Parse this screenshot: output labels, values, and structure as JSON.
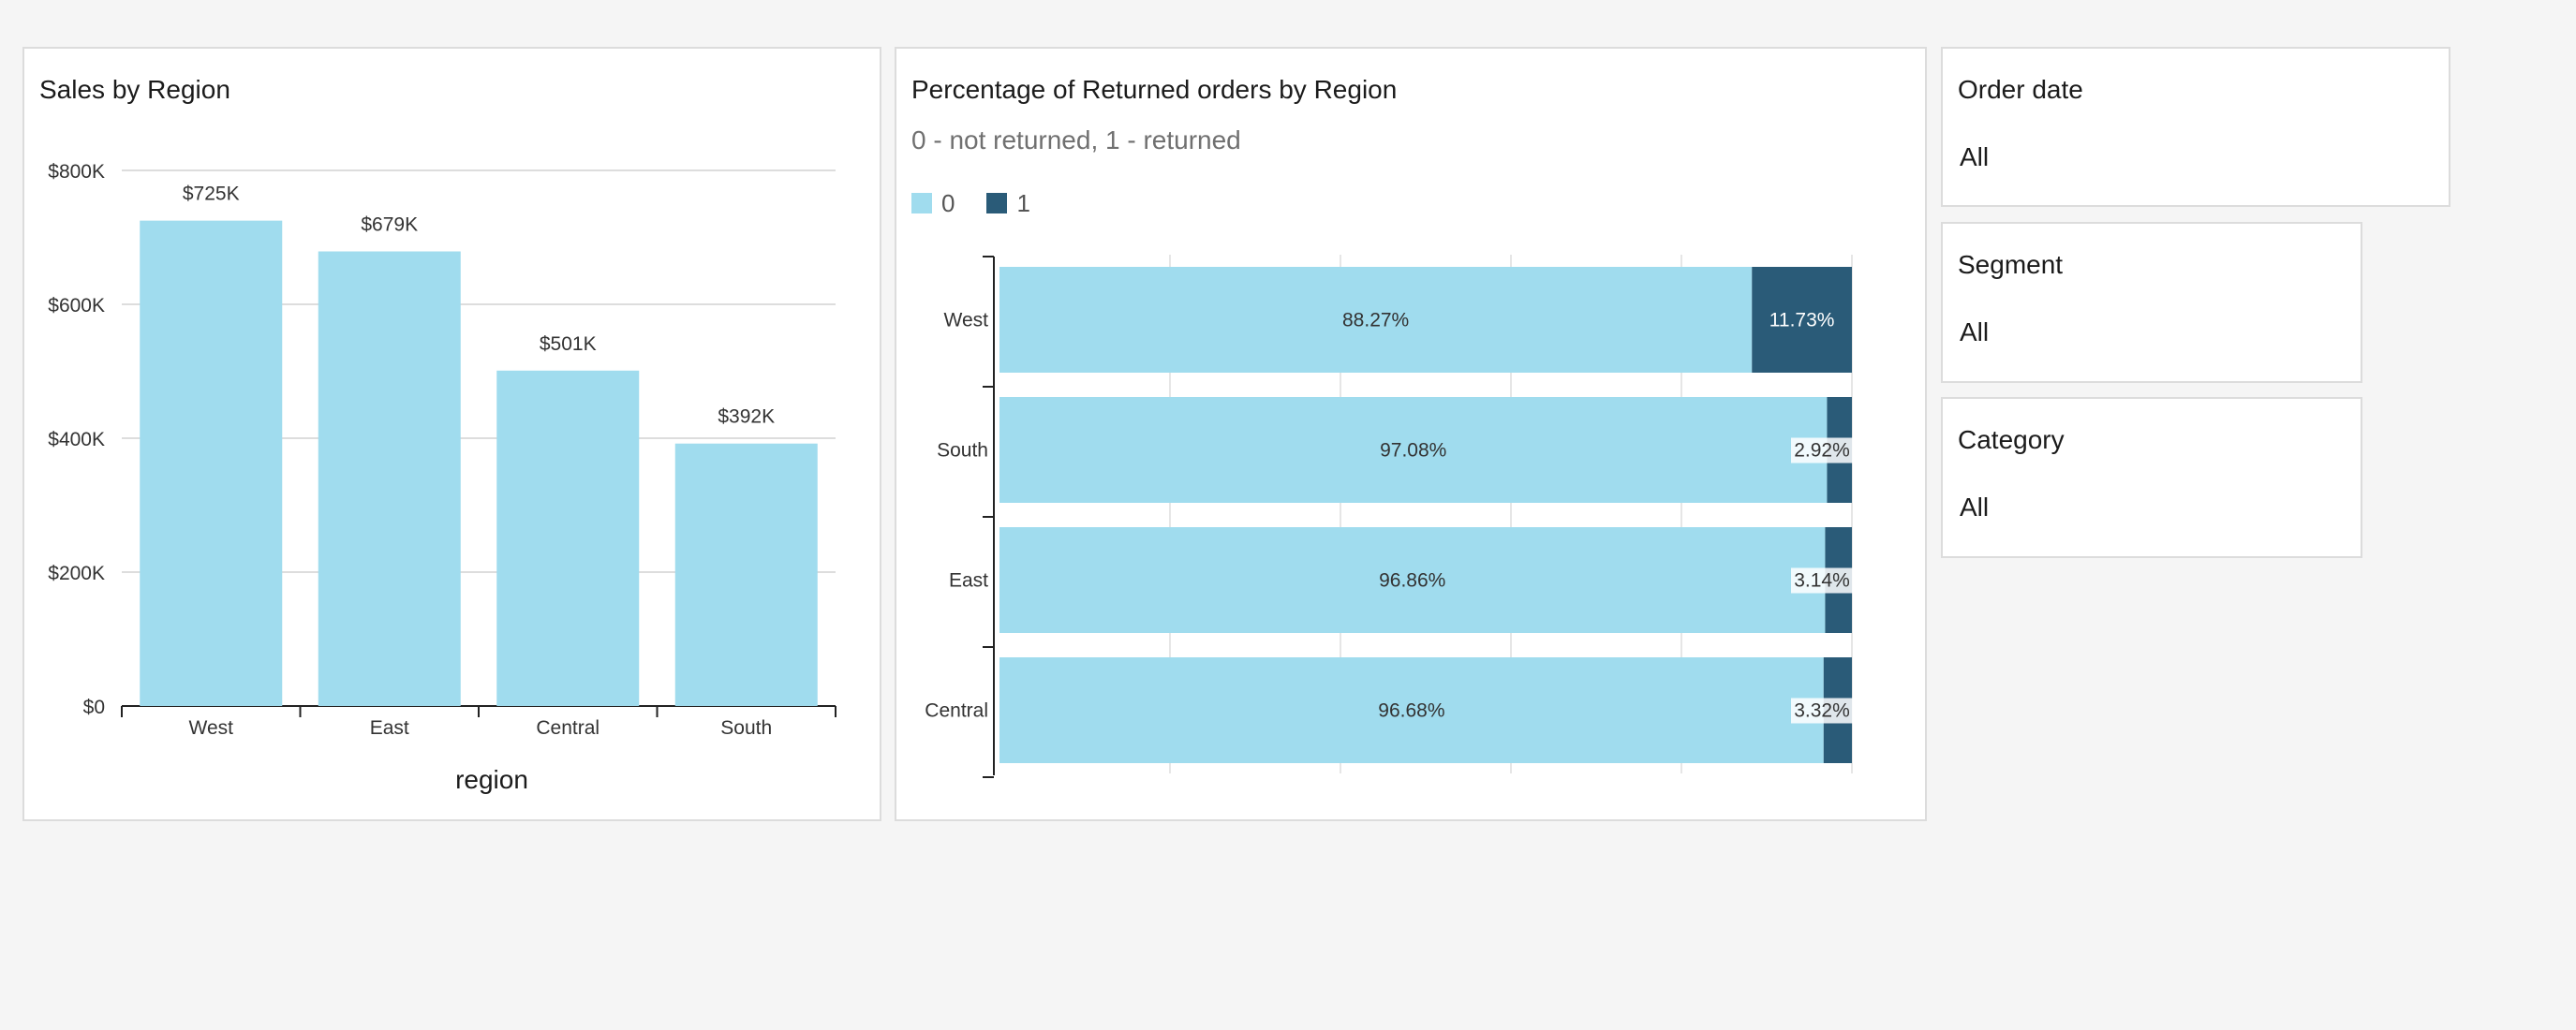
{
  "colors": {
    "bar": "#a0dcee",
    "returned": "#2a5b78",
    "grid": "#dddddd",
    "axis": "#222222"
  },
  "sales_chart": {
    "title": "Sales by Region"
  },
  "returns_chart": {
    "title": "Percentage of Returned orders by Region",
    "subtitle": "0 - not returned, 1 - returned",
    "legend": [
      {
        "label": "0",
        "color": "#a0dcee"
      },
      {
        "label": "1",
        "color": "#2a5b78"
      }
    ]
  },
  "filters": {
    "order_date": {
      "label": "Order date",
      "value": "All"
    },
    "segment": {
      "label": "Segment",
      "value": "All"
    },
    "category": {
      "label": "Category",
      "value": "All"
    }
  },
  "chart_data": [
    {
      "type": "bar",
      "title": "Sales by Region",
      "xlabel": "region",
      "ylabel": "",
      "categories": [
        "West",
        "East",
        "Central",
        "South"
      ],
      "values": [
        725,
        679,
        501,
        392
      ],
      "data_labels": [
        "$725K",
        "$679K",
        "$501K",
        "$392K"
      ],
      "ylim": [
        0,
        800
      ],
      "yticks": [
        0,
        200,
        400,
        600,
        800
      ],
      "ytick_labels": [
        "$0",
        "$200K",
        "$400K",
        "$600K",
        "$800K"
      ],
      "grid": true
    },
    {
      "type": "bar",
      "orientation": "horizontal",
      "stacked": true,
      "title": "Percentage of Returned orders by Region",
      "subtitle": "0 - not returned, 1 - returned",
      "categories": [
        "West",
        "South",
        "East",
        "Central"
      ],
      "series": [
        {
          "name": "0",
          "values": [
            88.27,
            97.08,
            96.86,
            96.68
          ],
          "labels": [
            "88.27%",
            "97.08%",
            "96.86%",
            "96.68%"
          ]
        },
        {
          "name": "1",
          "values": [
            11.73,
            2.92,
            3.14,
            3.32
          ],
          "labels": [
            "11.73%",
            "2.92%",
            "3.14%",
            "3.32%"
          ]
        }
      ],
      "xlim": [
        0,
        100
      ],
      "legend": "top-left",
      "grid": true
    }
  ]
}
